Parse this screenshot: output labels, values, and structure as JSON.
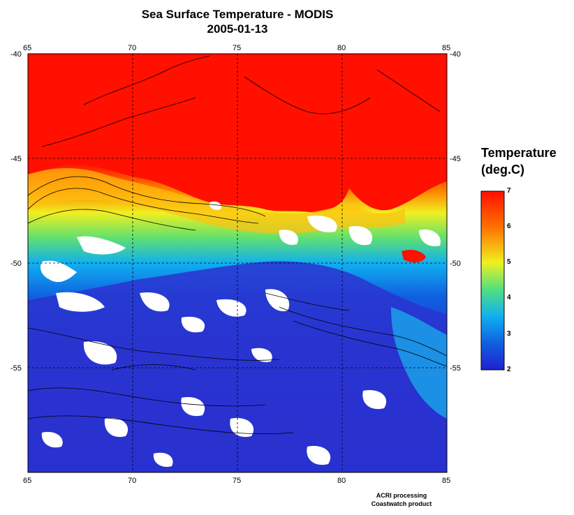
{
  "title": {
    "line1": "Sea Surface Temperature - MODIS",
    "line2": "2005-01-13"
  },
  "map": {
    "lon_ticks": [
      "65",
      "70",
      "75",
      "80",
      "85"
    ],
    "lat_ticks": [
      "-40",
      "-45",
      "-50",
      "-55"
    ],
    "lon_range": [
      65,
      85
    ],
    "lat_range": [
      -60,
      -40
    ],
    "no_data_color": "#ffffff",
    "contour_color": "#000000"
  },
  "colorbar": {
    "title_line1": "Temperature",
    "title_line2": "(deg.C)",
    "ticks": [
      "7",
      "6",
      "5",
      "4",
      "3",
      "2"
    ],
    "range": [
      2,
      7
    ],
    "colors": [
      "#2020d0",
      "#1060e8",
      "#10b0f0",
      "#30e0a0",
      "#f0f020",
      "#ff9000",
      "#ff1000"
    ]
  },
  "credit": {
    "line1": "ACRI processing",
    "line2": "Coastwatch product"
  }
}
